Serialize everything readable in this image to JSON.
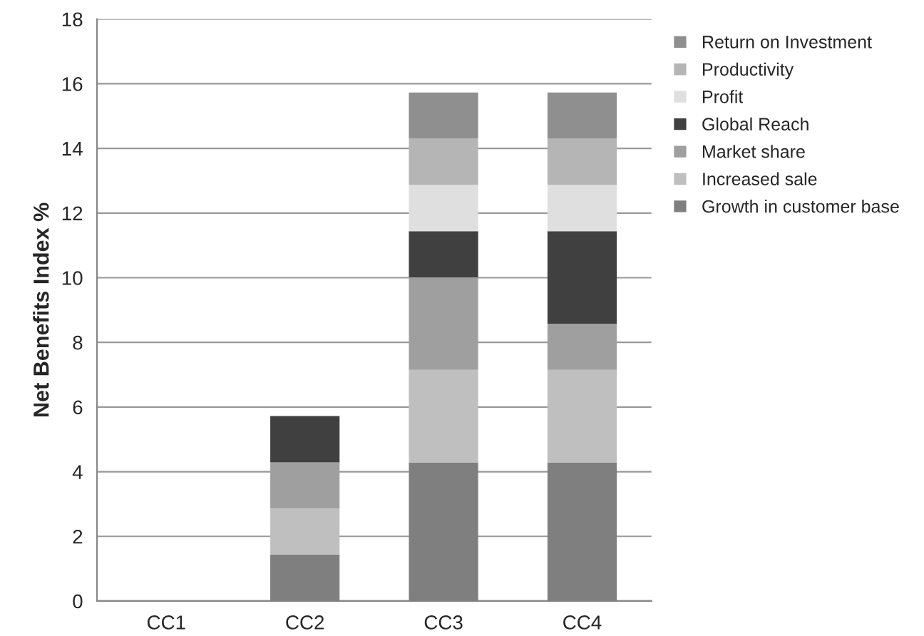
{
  "chart_data": {
    "type": "bar",
    "stacked": true,
    "ylabel": "Net Benefits Index %",
    "categories": [
      "CC1",
      "CC2",
      "CC3",
      "CC4"
    ],
    "series": [
      {
        "name": "Growth in customer base",
        "color": "#7f7f7f",
        "values": [
          0,
          1.43,
          4.29,
          4.29
        ]
      },
      {
        "name": "Increased sale",
        "color": "#bfbfbf",
        "values": [
          0,
          1.43,
          2.86,
          2.86
        ]
      },
      {
        "name": "Market share",
        "color": "#9f9f9f",
        "values": [
          0,
          1.43,
          2.86,
          1.43
        ]
      },
      {
        "name": "Global Reach",
        "color": "#404040",
        "values": [
          0,
          1.43,
          1.43,
          2.86
        ]
      },
      {
        "name": "Profit",
        "color": "#dfdfdf",
        "values": [
          0,
          0,
          1.43,
          1.43
        ]
      },
      {
        "name": "Productivity",
        "color": "#b5b5b5",
        "values": [
          0,
          0,
          1.43,
          1.43
        ]
      },
      {
        "name": "Return on Investment",
        "color": "#8f8f8f",
        "values": [
          0,
          0,
          1.43,
          1.43
        ]
      }
    ],
    "ylim": [
      0,
      18
    ],
    "yticks": [
      0,
      2,
      4,
      6,
      8,
      10,
      12,
      14,
      16,
      18
    ],
    "grid": "y",
    "legend": "top right"
  }
}
